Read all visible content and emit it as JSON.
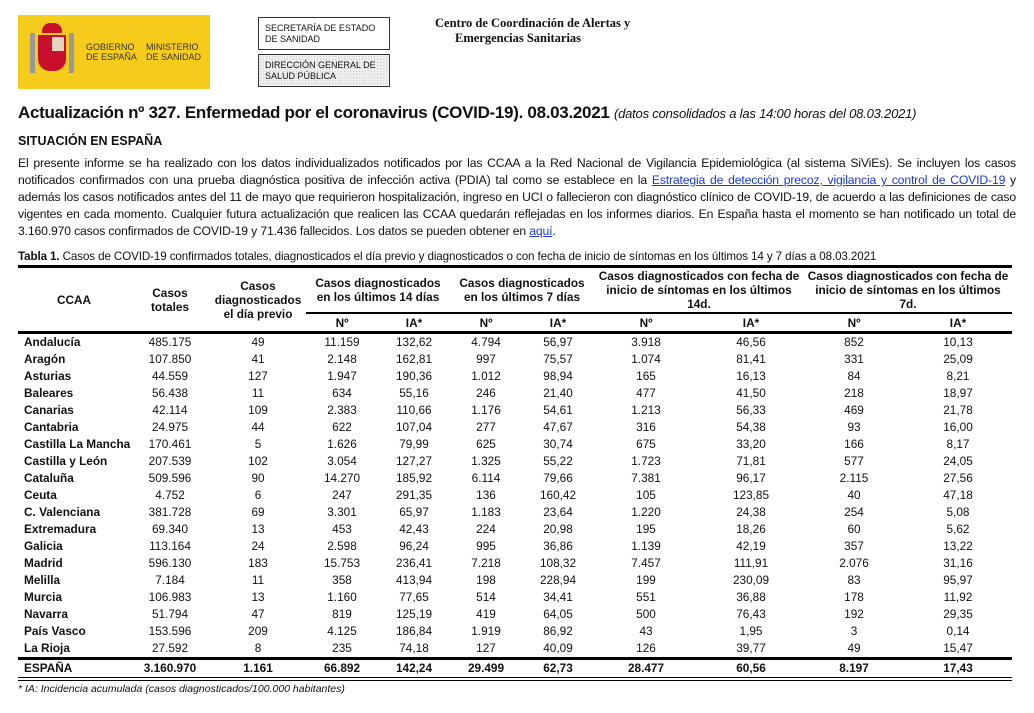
{
  "header": {
    "logo_gobierno": "GOBIERNO DE ESPAÑA",
    "logo_ministerio": "MINISTERIO DE SANIDAD",
    "box1": "SECRETARÍA DE ESTADO DE SANIDAD",
    "box2": "DIRECCIÓN GENERAL DE SALUD PÚBLICA",
    "center_line1": "Centro de Coordinación de Alertas y",
    "center_line2": "Emergencias Sanitarias"
  },
  "title": "Actualización nº 327. Enfermedad por el coronavirus (COVID-19). 08.03.2021",
  "title_note": "(datos consolidados a las 14:00 horas del 08.03.2021)",
  "section": "SITUACIÓN EN ESPAÑA",
  "paragraph": {
    "p1": "El presente informe se ha realizado con los datos individualizados notificados por las CCAA a la Red Nacional de Vigilancia Epidemiológica (al sistema SiViEs). Se incluyen los casos notificados confirmados con una prueba diagnóstica positiva de infección activa (PDIA) tal como se establece en la ",
    "link1": "Estrategia de detección precoz, vigilancia y control de COVID-19",
    "p2": " y además los casos notificados antes del 11 de mayo que requirieron hospitalización, ingreso en UCI o fallecieron con diagnóstico clínico de COVID-19, de acuerdo a las definiciones de caso vigentes en cada momento. Cualquier futura actualización que realicen las CCAA quedarán reflejadas en los informes diarios. En España hasta el momento se han notificado un total de 3.160.970 casos confirmados de COVID-19 y 71.436 fallecidos. Los datos se pueden obtener en ",
    "link2": "aquí",
    "p3": "."
  },
  "table": {
    "caption_bold": "Tabla 1.",
    "caption": " Casos de COVID-19 confirmados totales, diagnosticados el día previo y diagnosticados o con fecha de inicio de síntomas en los últimos 14 y 7 días a 08.03.2021",
    "headers": {
      "ccaa": "CCAA",
      "totales": "Casos totales",
      "previo": "Casos diagnosticados el día previo",
      "d14": "Casos diagnosticados en los últimos 14 días",
      "d7": "Casos diagnosticados en los últimos 7 días",
      "s14": "Casos diagnosticados con fecha de inicio de síntomas en los últimos 14d.",
      "s7": "Casos diagnosticados con fecha de inicio de síntomas en los últimos 7d.",
      "n": "Nº",
      "ia": "IA*"
    },
    "rows": [
      [
        "Andalucía",
        "485.175",
        "49",
        "11.159",
        "132,62",
        "4.794",
        "56,97",
        "3.918",
        "46,56",
        "852",
        "10,13"
      ],
      [
        "Aragón",
        "107.850",
        "41",
        "2.148",
        "162,81",
        "997",
        "75,57",
        "1.074",
        "81,41",
        "331",
        "25,09"
      ],
      [
        "Asturias",
        "44.559",
        "127",
        "1.947",
        "190,36",
        "1.012",
        "98,94",
        "165",
        "16,13",
        "84",
        "8,21"
      ],
      [
        "Baleares",
        "56.438",
        "11",
        "634",
        "55,16",
        "246",
        "21,40",
        "477",
        "41,50",
        "218",
        "18,97"
      ],
      [
        "Canarias",
        "42.114",
        "109",
        "2.383",
        "110,66",
        "1.176",
        "54,61",
        "1.213",
        "56,33",
        "469",
        "21,78"
      ],
      [
        "Cantabria",
        "24.975",
        "44",
        "622",
        "107,04",
        "277",
        "47,67",
        "316",
        "54,38",
        "93",
        "16,00"
      ],
      [
        "Castilla La Mancha",
        "170.461",
        "5",
        "1.626",
        "79,99",
        "625",
        "30,74",
        "675",
        "33,20",
        "166",
        "8,17"
      ],
      [
        "Castilla y León",
        "207.539",
        "102",
        "3.054",
        "127,27",
        "1.325",
        "55,22",
        "1.723",
        "71,81",
        "577",
        "24,05"
      ],
      [
        "Cataluña",
        "509.596",
        "90",
        "14.270",
        "185,92",
        "6.114",
        "79,66",
        "7.381",
        "96,17",
        "2.115",
        "27,56"
      ],
      [
        "Ceuta",
        "4.752",
        "6",
        "247",
        "291,35",
        "136",
        "160,42",
        "105",
        "123,85",
        "40",
        "47,18"
      ],
      [
        "C. Valenciana",
        "381.728",
        "69",
        "3.301",
        "65,97",
        "1.183",
        "23,64",
        "1.220",
        "24,38",
        "254",
        "5,08"
      ],
      [
        "Extremadura",
        "69.340",
        "13",
        "453",
        "42,43",
        "224",
        "20,98",
        "195",
        "18,26",
        "60",
        "5,62"
      ],
      [
        "Galicia",
        "113.164",
        "24",
        "2.598",
        "96,24",
        "995",
        "36,86",
        "1.139",
        "42,19",
        "357",
        "13,22"
      ],
      [
        "Madrid",
        "596.130",
        "183",
        "15.753",
        "236,41",
        "7.218",
        "108,32",
        "7.457",
        "111,91",
        "2.076",
        "31,16"
      ],
      [
        "Melilla",
        "7.184",
        "11",
        "358",
        "413,94",
        "198",
        "228,94",
        "199",
        "230,09",
        "83",
        "95,97"
      ],
      [
        "Murcia",
        "106.983",
        "13",
        "1.160",
        "77,65",
        "514",
        "34,41",
        "551",
        "36,88",
        "178",
        "11,92"
      ],
      [
        "Navarra",
        "51.794",
        "47",
        "819",
        "125,19",
        "419",
        "64,05",
        "500",
        "76,43",
        "192",
        "29,35"
      ],
      [
        "País Vasco",
        "153.596",
        "209",
        "4.125",
        "186,84",
        "1.919",
        "86,92",
        "43",
        "1,95",
        "3",
        "0,14"
      ],
      [
        "La Rioja",
        "27.592",
        "8",
        "235",
        "74,18",
        "127",
        "40,09",
        "126",
        "39,77",
        "49",
        "15,47"
      ]
    ],
    "total": [
      "ESPAÑA",
      "3.160.970",
      "1.161",
      "66.892",
      "142,24",
      "29.499",
      "62,73",
      "28.477",
      "60,56",
      "8.197",
      "17,43"
    ],
    "footnote": "* IA: Incidencia acumulada (casos diagnosticados/100.000 habitantes)"
  },
  "colors": {
    "logo_yellow": "#f5cc1c",
    "link": "#1a3ad0"
  }
}
